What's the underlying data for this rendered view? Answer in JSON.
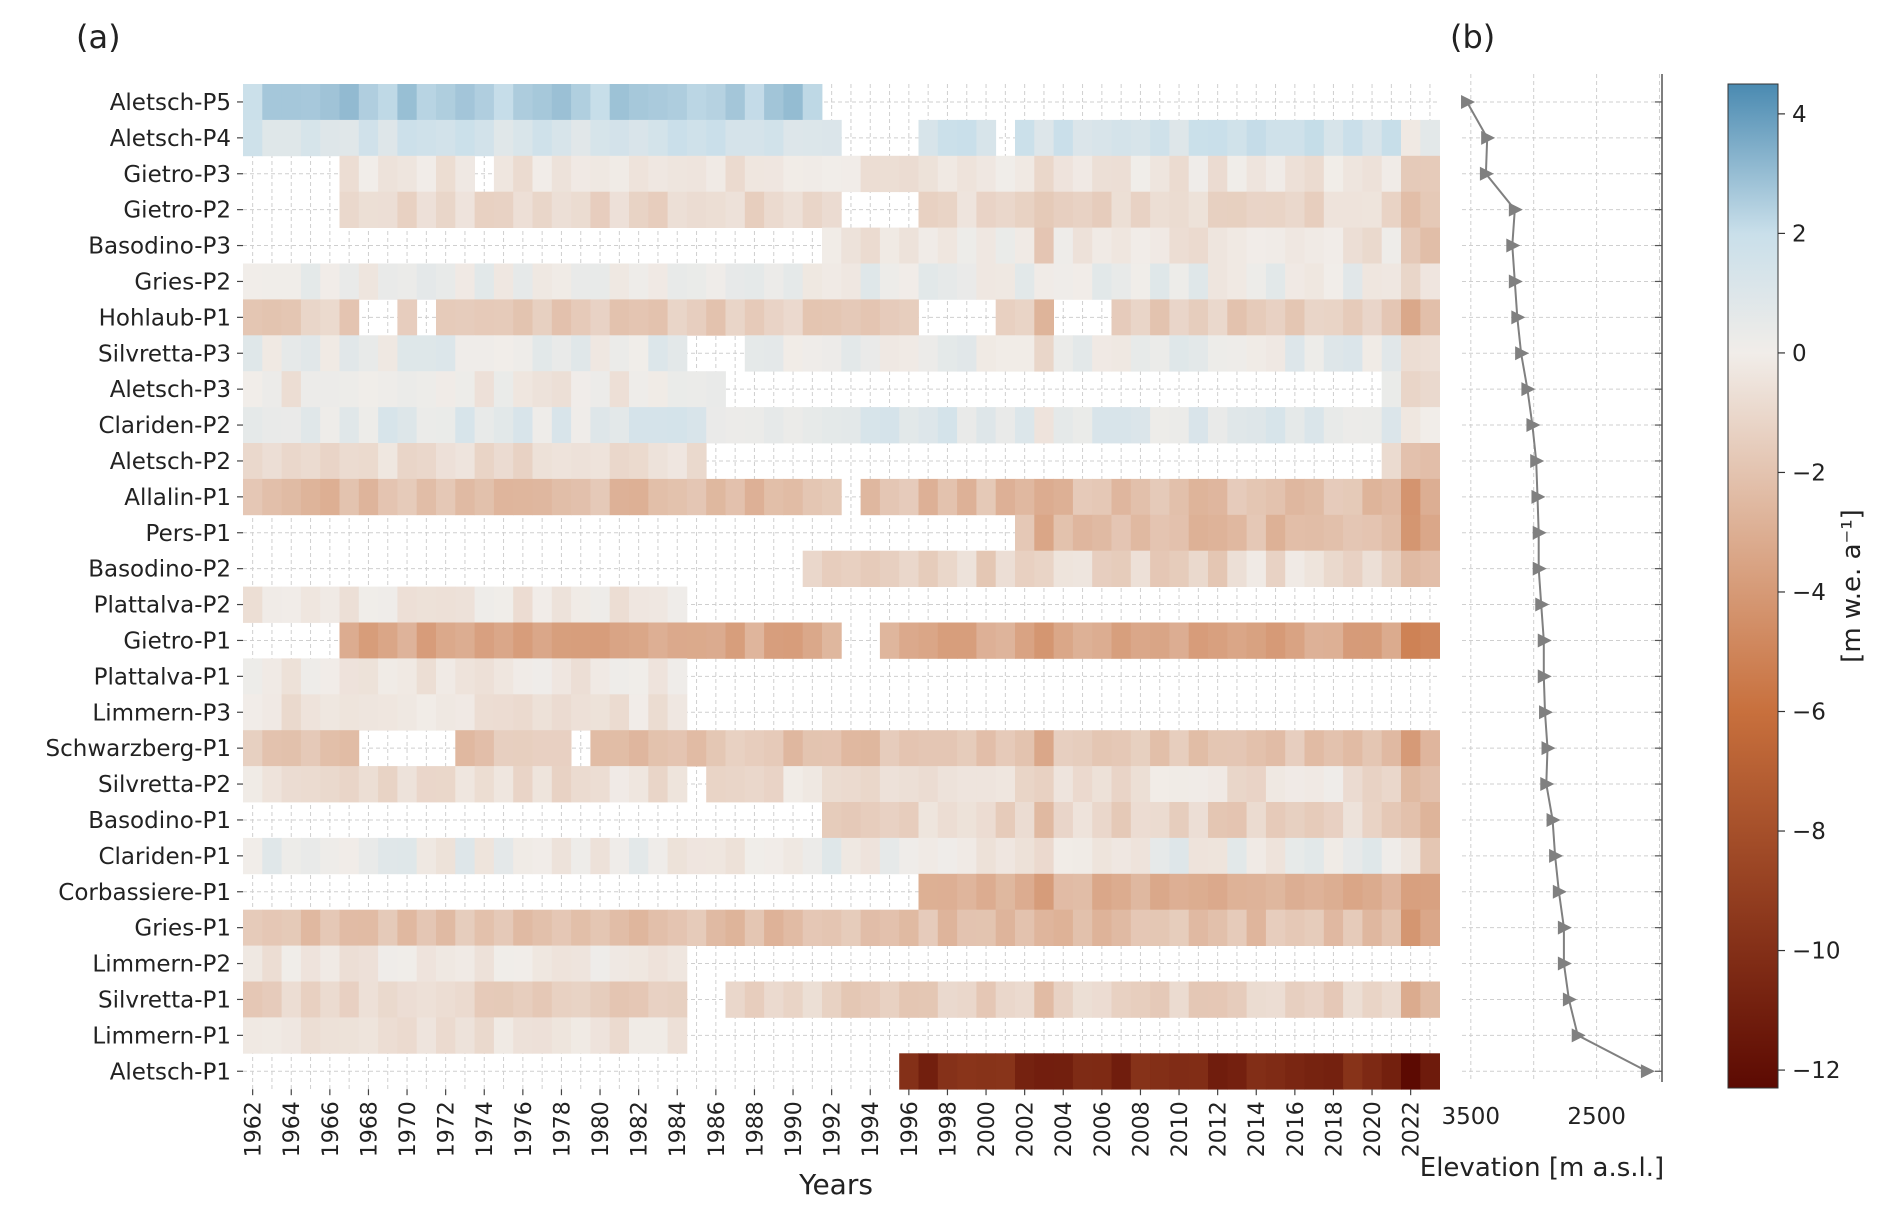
{
  "panels": {
    "a_label": "(a)",
    "b_label": "(b)"
  },
  "chart_data": [
    {
      "type": "heatmap",
      "title": "",
      "xlabel": "Years",
      "ylabel": "",
      "grid": true,
      "x": [
        1962,
        1963,
        1964,
        1965,
        1966,
        1967,
        1968,
        1969,
        1970,
        1971,
        1972,
        1973,
        1974,
        1975,
        1976,
        1977,
        1978,
        1979,
        1980,
        1981,
        1982,
        1983,
        1984,
        1985,
        1986,
        1987,
        1988,
        1989,
        1990,
        1991,
        1992,
        1993,
        1994,
        1995,
        1996,
        1997,
        1998,
        1999,
        2000,
        2001,
        2002,
        2003,
        2004,
        2005,
        2006,
        2007,
        2008,
        2009,
        2010,
        2011,
        2012,
        2013,
        2014,
        2015,
        2016,
        2017,
        2018,
        2019,
        2020,
        2021,
        2022,
        2023
      ],
      "x_tick_labels": [
        "1962",
        "1964",
        "1966",
        "1968",
        "1970",
        "1972",
        "1974",
        "1976",
        "1978",
        "1980",
        "1982",
        "1984",
        "1986",
        "1988",
        "1990",
        "1992",
        "1994",
        "1996",
        "1998",
        "2000",
        "2002",
        "2004",
        "2006",
        "2008",
        "2010",
        "2012",
        "2014",
        "2016",
        "2018",
        "2020",
        "2022"
      ],
      "rows": [
        {
          "name": "Aletsch-P5",
          "start": 1962,
          "end": 1991,
          "base": 2.5,
          "amp": 0.6
        },
        {
          "name": "Aletsch-P4",
          "start": 1962,
          "end": 2023,
          "base": 1.4,
          "amp": 0.6,
          "gaps": [
            [
              1993,
              1996
            ],
            [
              2001,
              2001
            ]
          ],
          "late": 1.5
        },
        {
          "name": "Gietro-P3",
          "start": 1967,
          "end": 2023,
          "base": -0.4,
          "amp": 0.5,
          "gaps": [
            [
              1974,
              1974
            ]
          ]
        },
        {
          "name": "Gietro-P2",
          "start": 1967,
          "end": 2023,
          "base": -1.0,
          "amp": 0.6,
          "gaps": [
            [
              1993,
              1996
            ]
          ]
        },
        {
          "name": "Basodino-P3",
          "start": 1992,
          "end": 2023,
          "base": -0.3,
          "amp": 0.7
        },
        {
          "name": "Gries-P2",
          "start": 1962,
          "end": 2023,
          "base": 0.3,
          "amp": 0.7
        },
        {
          "name": "Hohlaub-P1",
          "start": 1962,
          "end": 2023,
          "base": -1.5,
          "amp": 0.6,
          "gaps": [
            [
              1968,
              1969
            ],
            [
              1971,
              1971
            ],
            [
              1997,
              2000
            ],
            [
              2004,
              2006
            ]
          ]
        },
        {
          "name": "Silvretta-P3",
          "start": 1962,
          "end": 2023,
          "base": 0.4,
          "amp": 0.7,
          "gaps": [
            [
              1985,
              1987
            ]
          ]
        },
        {
          "name": "Aletsch-P3",
          "start": 1962,
          "end": 1986,
          "base": -0.2,
          "amp": 0.6,
          "tail": [
            2021,
            2023
          ]
        },
        {
          "name": "Clariden-P2",
          "start": 1962,
          "end": 2023,
          "base": 0.8,
          "amp": 0.7
        },
        {
          "name": "Aletsch-P2",
          "start": 1962,
          "end": 1985,
          "base": -0.8,
          "amp": 0.5,
          "tail": [
            2021,
            2023
          ]
        },
        {
          "name": "Allalin-P1",
          "start": 1962,
          "end": 2023,
          "base": -2.3,
          "amp": 0.7,
          "gaps": [
            [
              1993,
              1993
            ]
          ]
        },
        {
          "name": "Pers-P1",
          "start": 2002,
          "end": 2023,
          "base": -2.3,
          "amp": 0.6
        },
        {
          "name": "Basodino-P2",
          "start": 1991,
          "end": 2023,
          "base": -1.0,
          "amp": 0.9
        },
        {
          "name": "Plattalva-P2",
          "start": 1962,
          "end": 1984,
          "base": -0.3,
          "amp": 0.5
        },
        {
          "name": "Gietro-P1",
          "start": 1967,
          "end": 2023,
          "base": -3.3,
          "amp": 0.7,
          "gaps": [
            [
              1993,
              1994
            ]
          ]
        },
        {
          "name": "Plattalva-P1",
          "start": 1962,
          "end": 1984,
          "base": -0.3,
          "amp": 0.5
        },
        {
          "name": "Limmern-P3",
          "start": 1962,
          "end": 1984,
          "base": -0.5,
          "amp": 0.5
        },
        {
          "name": "Schwarzberg-P1",
          "start": 1962,
          "end": 2023,
          "base": -2.0,
          "amp": 0.7,
          "gaps": [
            [
              1968,
              1972
            ],
            [
              1979,
              1979
            ]
          ]
        },
        {
          "name": "Silvretta-P2",
          "start": 1962,
          "end": 2023,
          "base": -0.6,
          "amp": 0.7,
          "gaps": [
            [
              1985,
              1985
            ]
          ]
        },
        {
          "name": "Basodino-P1",
          "start": 1992,
          "end": 2023,
          "base": -1.2,
          "amp": 0.8
        },
        {
          "name": "Clariden-P1",
          "start": 1962,
          "end": 2023,
          "base": 0.2,
          "amp": 0.8
        },
        {
          "name": "Corbassiere-P1",
          "start": 1997,
          "end": 2023,
          "base": -2.9,
          "amp": 0.6
        },
        {
          "name": "Gries-P1",
          "start": 1962,
          "end": 2023,
          "base": -2.2,
          "amp": 0.7
        },
        {
          "name": "Limmern-P2",
          "start": 1962,
          "end": 1984,
          "base": -0.3,
          "amp": 0.5
        },
        {
          "name": "Silvretta-P1",
          "start": 1962,
          "end": 2023,
          "base": -1.3,
          "amp": 0.7,
          "gaps": [
            [
              1985,
              1986
            ]
          ]
        },
        {
          "name": "Limmern-P1",
          "start": 1962,
          "end": 1984,
          "base": -0.6,
          "amp": 0.5
        },
        {
          "name": "Aletsch-P1",
          "start": 1996,
          "end": 2023,
          "base": -10.3,
          "amp": 0.9
        }
      ],
      "colorbar": {
        "label": "[m w.e. a⁻¹]",
        "min": -12.3,
        "max": 4.5,
        "ticks": [
          4,
          2,
          0,
          -2,
          -4,
          -6,
          -8,
          -10,
          -12
        ],
        "tick_labels": [
          "4",
          "2",
          "0",
          "−2",
          "−4",
          "−6",
          "−8",
          "−10",
          "−12"
        ],
        "colors": {
          "high": "#4a8ab1",
          "light": "#c9dfea",
          "zero": "#f1ede9",
          "mid": "#c8703d",
          "low": "#5c0a02"
        }
      }
    },
    {
      "type": "line",
      "title": "",
      "xlabel": "Elevation [m a.s.l.]",
      "x_tick_labels": [
        "3500",
        "2500"
      ],
      "x_ticks": [
        3500,
        2500
      ],
      "xlim": [
        3570,
        1980
      ],
      "marker": "right-triangle",
      "line_color": "#808080",
      "series": [
        {
          "values": [
            3530,
            3370,
            3380,
            3150,
            3170,
            3150,
            3130,
            3100,
            3050,
            3010,
            2980,
            2970,
            2960,
            2960,
            2940,
            2920,
            2920,
            2910,
            2890,
            2900,
            2850,
            2830,
            2800,
            2760,
            2760,
            2720,
            2650,
            2100
          ]
        }
      ]
    }
  ]
}
